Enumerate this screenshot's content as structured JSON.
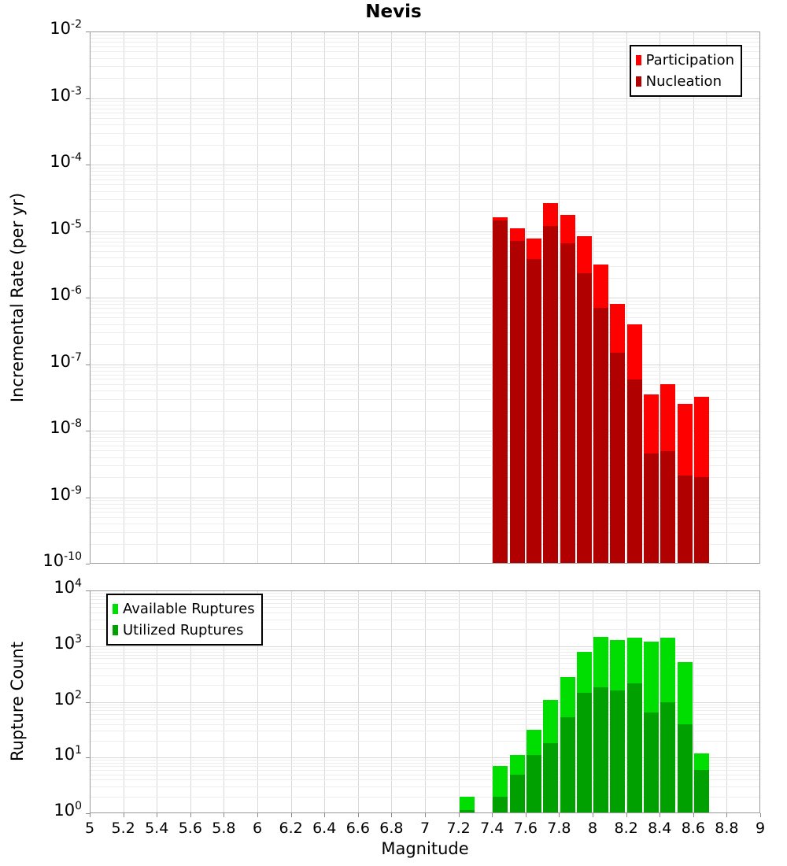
{
  "page": {
    "title": "Nevis"
  },
  "chart_data": [
    {
      "type": "bar",
      "id": "incremental-rate",
      "title": "Nevis",
      "xlabel": "Magnitude",
      "ylabel": "Incremental Rate (per yr)",
      "yscale": "log",
      "grid": true,
      "legend_position": "top-right",
      "xlim": [
        5,
        9
      ],
      "ylim": [
        1e-10,
        0.01
      ],
      "ytick_exponents": [
        -2,
        -3,
        -4,
        -5,
        -6,
        -7,
        -8,
        -9,
        -10
      ],
      "xticks": {
        "values": [
          5,
          5.2,
          5.4,
          5.6,
          5.8,
          6,
          6.2,
          6.4,
          6.6,
          6.8,
          7,
          7.2,
          7.4,
          7.6,
          7.8,
          8,
          8.2,
          8.4,
          8.6,
          8.8,
          9
        ],
        "labels": [
          "5",
          "5.2",
          "5.4",
          "5.6",
          "5.8",
          "6",
          "6.2",
          "6.4",
          "6.6",
          "6.8",
          "7",
          "7.2",
          "7.4",
          "7.6",
          "7.8",
          "8",
          "8.2",
          "8.4",
          "8.6",
          "8.8",
          "9"
        ]
      },
      "bin_width": 0.1,
      "categories": [
        7.45,
        7.55,
        7.65,
        7.75,
        7.85,
        7.95,
        8.05,
        8.15,
        8.25,
        8.35,
        8.45,
        8.55,
        8.65
      ],
      "series": [
        {
          "name": "Participation",
          "color": "#ff0000",
          "values": [
            1.6e-05,
            1.1e-05,
            7.8e-06,
            2.6e-05,
            1.75e-05,
            8.3e-06,
            3.1e-06,
            8e-07,
            4e-07,
            3.5e-08,
            5e-08,
            2.5e-08,
            3.2e-08
          ]
        },
        {
          "name": "Nucleation",
          "color": "#b00000",
          "values": [
            1.45e-05,
            7.2e-06,
            3.8e-06,
            1.2e-05,
            6.5e-06,
            2.3e-06,
            7e-07,
            1.5e-07,
            5.8e-08,
            4.5e-09,
            4.9e-09,
            2.1e-09,
            2e-09
          ]
        }
      ]
    },
    {
      "type": "bar",
      "id": "rupture-count",
      "title": "",
      "xlabel": "Magnitude",
      "ylabel": "Rupture Count",
      "yscale": "log",
      "grid": true,
      "legend_position": "top-left",
      "xlim": [
        5,
        9
      ],
      "ylim": [
        1,
        10000
      ],
      "ytick_exponents": [
        4,
        3,
        2,
        1,
        0
      ],
      "xticks": {
        "values": [
          5,
          5.2,
          5.4,
          5.6,
          5.8,
          6,
          6.2,
          6.4,
          6.6,
          6.8,
          7,
          7.2,
          7.4,
          7.6,
          7.8,
          8,
          8.2,
          8.4,
          8.6,
          8.8,
          9
        ],
        "labels": [
          "5",
          "5.2",
          "5.4",
          "5.6",
          "5.8",
          "6",
          "6.2",
          "6.4",
          "6.6",
          "6.8",
          "7",
          "7.2",
          "7.4",
          "7.6",
          "7.8",
          "8",
          "8.2",
          "8.4",
          "8.6",
          "8.8",
          "9"
        ]
      },
      "bin_width": 0.1,
      "categories": [
        7.25,
        7.45,
        7.55,
        7.65,
        7.75,
        7.85,
        7.95,
        8.05,
        8.15,
        8.25,
        8.35,
        8.45,
        8.55,
        8.65
      ],
      "series": [
        {
          "name": "Available Ruptures",
          "color": "#00dd00",
          "values": [
            2,
            7,
            11,
            32,
            110,
            280,
            800,
            1450,
            1300,
            1400,
            1200,
            1400,
            510,
            12
          ]
        },
        {
          "name": "Utilized Ruptures",
          "color": "#00a000",
          "values": [
            1,
            2,
            5,
            11,
            18,
            53,
            145,
            180,
            160,
            215,
            64,
            100,
            39,
            6
          ]
        }
      ]
    }
  ],
  "colors": {
    "participation": "#ff0000",
    "nucleation": "#b00000",
    "available_ruptures": "#00dd00",
    "utilized_ruptures": "#00a000",
    "grid_major": "#d9d9d9",
    "grid_minor": "#ededed",
    "panel_border": "#9b9b9b"
  }
}
